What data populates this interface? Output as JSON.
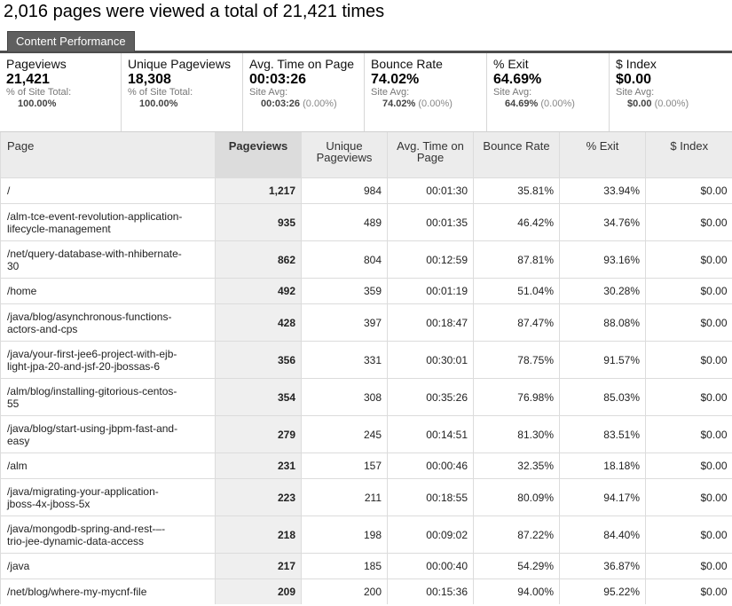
{
  "headline": "2,016 pages were viewed a total of 21,421 times",
  "tab": {
    "label": "Content Performance"
  },
  "summary": [
    {
      "name": "metric-pageviews",
      "title": "Pageviews",
      "value": "21,421",
      "line1": "% of Site Total:",
      "line2_bold": "100.00%",
      "line2_pct": ""
    },
    {
      "name": "metric-unique-pageviews",
      "title": "Unique Pageviews",
      "value": "18,308",
      "line1": "% of Site Total:",
      "line2_bold": "100.00%",
      "line2_pct": ""
    },
    {
      "name": "metric-avg-time",
      "title": "Avg. Time on Page",
      "value": "00:03:26",
      "line1": "Site Avg:",
      "line2_bold": "00:03:26",
      "line2_pct": "(0.00%)"
    },
    {
      "name": "metric-bounce-rate",
      "title": "Bounce Rate",
      "value": "74.02%",
      "line1": "Site Avg:",
      "line2_bold": "74.02%",
      "line2_pct": "(0.00%)"
    },
    {
      "name": "metric-exit",
      "title": "% Exit",
      "value": "64.69%",
      "line1": "Site Avg:",
      "line2_bold": "64.69%",
      "line2_pct": "(0.00%)"
    },
    {
      "name": "metric-index",
      "title": "$ Index",
      "value": "$0.00",
      "line1": "Site Avg:",
      "line2_bold": "$0.00",
      "line2_pct": "(0.00%)"
    }
  ],
  "columns": [
    "Page",
    "Pageviews",
    "Unique Pageviews",
    "Avg. Time on Page",
    "Bounce Rate",
    "% Exit",
    "$ Index"
  ],
  "rows": [
    {
      "page": [
        "/"
      ],
      "pv": "1,217",
      "upv": "984",
      "time": "00:01:30",
      "bounce": "35.81%",
      "exit": "33.94%",
      "index": "$0.00"
    },
    {
      "page": [
        "/alm-tce-event-revolution-application-",
        "lifecycle-management"
      ],
      "pv": "935",
      "upv": "489",
      "time": "00:01:35",
      "bounce": "46.42%",
      "exit": "34.76%",
      "index": "$0.00"
    },
    {
      "page": [
        "/net/query-database-with-nhibernate-",
        "30"
      ],
      "pv": "862",
      "upv": "804",
      "time": "00:12:59",
      "bounce": "87.81%",
      "exit": "93.16%",
      "index": "$0.00"
    },
    {
      "page": [
        "/home"
      ],
      "pv": "492",
      "upv": "359",
      "time": "00:01:19",
      "bounce": "51.04%",
      "exit": "30.28%",
      "index": "$0.00"
    },
    {
      "page": [
        "/java/blog/asynchronous-functions-",
        "actors-and-cps"
      ],
      "pv": "428",
      "upv": "397",
      "time": "00:18:47",
      "bounce": "87.47%",
      "exit": "88.08%",
      "index": "$0.00"
    },
    {
      "page": [
        "/java/your-first-jee6-project-with-ejb-",
        "light-jpa-20-and-jsf-20-jbossas-6"
      ],
      "pv": "356",
      "upv": "331",
      "time": "00:30:01",
      "bounce": "78.75%",
      "exit": "91.57%",
      "index": "$0.00"
    },
    {
      "page": [
        "/alm/blog/installing-gitorious-centos-",
        "55"
      ],
      "pv": "354",
      "upv": "308",
      "time": "00:35:26",
      "bounce": "76.98%",
      "exit": "85.03%",
      "index": "$0.00"
    },
    {
      "page": [
        "/java/blog/start-using-jbpm-fast-and-",
        "easy"
      ],
      "pv": "279",
      "upv": "245",
      "time": "00:14:51",
      "bounce": "81.30%",
      "exit": "83.51%",
      "index": "$0.00"
    },
    {
      "page": [
        "/alm"
      ],
      "pv": "231",
      "upv": "157",
      "time": "00:00:46",
      "bounce": "32.35%",
      "exit": "18.18%",
      "index": "$0.00"
    },
    {
      "page": [
        "/java/migrating-your-application-",
        "jboss-4x-jboss-5x"
      ],
      "pv": "223",
      "upv": "211",
      "time": "00:18:55",
      "bounce": "80.09%",
      "exit": "94.17%",
      "index": "$0.00"
    },
    {
      "page": [
        "/java/mongodb-spring-and-rest-–-",
        "trio-jee-dynamic-data-access"
      ],
      "pv": "218",
      "upv": "198",
      "time": "00:09:02",
      "bounce": "87.22%",
      "exit": "84.40%",
      "index": "$0.00"
    },
    {
      "page": [
        "/java"
      ],
      "pv": "217",
      "upv": "185",
      "time": "00:00:40",
      "bounce": "54.29%",
      "exit": "36.87%",
      "index": "$0.00"
    },
    {
      "page": [
        "/net/blog/where-my-mycnf-file"
      ],
      "pv": "209",
      "upv": "200",
      "time": "00:15:36",
      "bounce": "94.00%",
      "exit": "95.22%",
      "index": "$0.00"
    }
  ]
}
